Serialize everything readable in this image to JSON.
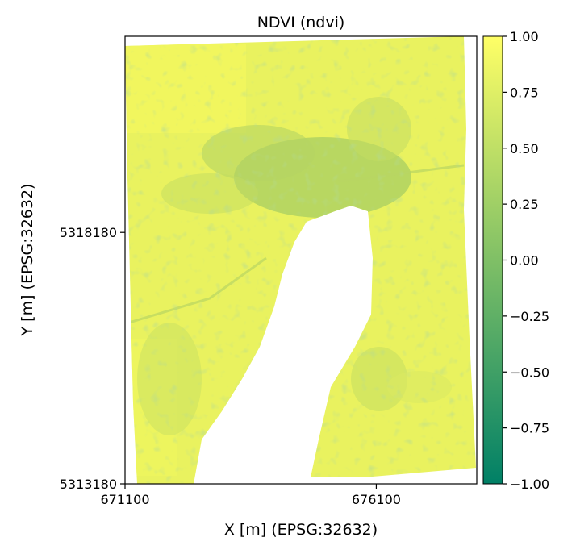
{
  "chart_data": {
    "type": "heatmap",
    "title": "NDVI (ndvi)",
    "xlabel": "X [m] (EPSG:32632)",
    "ylabel": "Y [m] (EPSG:32632)",
    "xlim": [
      671100,
      678100
    ],
    "ylim": [
      5313180,
      5322080
    ],
    "x_ticks": [
      671100,
      676100
    ],
    "x_tick_labels": [
      "671100",
      "676100"
    ],
    "y_ticks": [
      5313180,
      5318180
    ],
    "y_tick_labels": [
      "5313180",
      "5318180"
    ],
    "colorbar": {
      "colormap": "summer",
      "range": [
        -1.0,
        1.0
      ],
      "ticks": [
        1.0,
        0.75,
        0.5,
        0.25,
        0.0,
        -0.25,
        -0.5,
        -0.75,
        -1.0
      ],
      "tick_labels": [
        "1.00",
        "0.75",
        "0.50",
        "0.25",
        "0.00",
        "−0.25",
        "−0.50",
        "−0.75",
        "−1.00"
      ],
      "color_min": "#008066",
      "color_max": "#ffff66"
    },
    "raster_colors": {
      "dominant": "#e9f25f",
      "urban": "#a7cd62",
      "bright": "#f6f95f",
      "no_data": "#ffffff"
    },
    "grid": false,
    "legend": "none"
  }
}
